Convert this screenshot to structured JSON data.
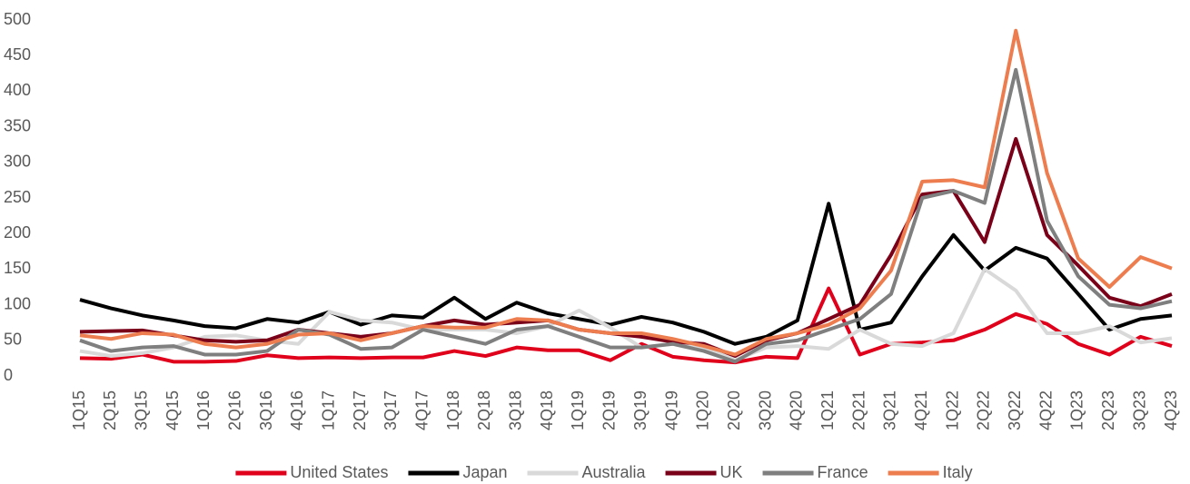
{
  "chart_data": {
    "type": "line",
    "categories": [
      "1Q15",
      "2Q15",
      "3Q15",
      "4Q15",
      "1Q16",
      "2Q16",
      "3Q16",
      "4Q16",
      "1Q17",
      "2Q17",
      "3Q17",
      "4Q17",
      "1Q18",
      "2Q18",
      "3Q18",
      "4Q18",
      "1Q19",
      "2Q19",
      "3Q19",
      "4Q19",
      "1Q20",
      "2Q20",
      "3Q20",
      "4Q20",
      "1Q21",
      "2Q21",
      "3Q21",
      "4Q21",
      "1Q22",
      "2Q22",
      "3Q22",
      "4Q22",
      "1Q23",
      "2Q23",
      "3Q23",
      "4Q23"
    ],
    "series": [
      {
        "name": "United States",
        "color": "#e0001b",
        "values": [
          25,
          24,
          30,
          20,
          20,
          21,
          29,
          25,
          26,
          25,
          26,
          26,
          35,
          28,
          40,
          36,
          36,
          22,
          45,
          27,
          22,
          19,
          27,
          25,
          123,
          30,
          45,
          47,
          50,
          65,
          87,
          73,
          45,
          30,
          55,
          42
        ]
      },
      {
        "name": "Japan",
        "color": "#000000",
        "values": [
          107,
          95,
          85,
          78,
          70,
          67,
          80,
          75,
          90,
          72,
          85,
          82,
          110,
          80,
          103,
          88,
          80,
          72,
          83,
          75,
          62,
          45,
          55,
          78,
          242,
          65,
          75,
          140,
          198,
          148,
          180,
          165,
          115,
          65,
          80,
          85
        ]
      },
      {
        "name": "Australia",
        "color": "#d9d9d9",
        "values": [
          35,
          28,
          32,
          40,
          55,
          57,
          50,
          45,
          90,
          78,
          75,
          65,
          65,
          65,
          60,
          70,
          92,
          68,
          40,
          45,
          40,
          22,
          40,
          42,
          38,
          65,
          45,
          42,
          60,
          150,
          120,
          60,
          60,
          70,
          47,
          53
        ]
      },
      {
        "name": "UK",
        "color": "#7a0019",
        "values": [
          62,
          63,
          64,
          57,
          50,
          48,
          50,
          65,
          60,
          55,
          60,
          70,
          78,
          72,
          75,
          78,
          65,
          60,
          55,
          48,
          45,
          28,
          50,
          60,
          80,
          100,
          170,
          255,
          260,
          188,
          333,
          198,
          155,
          110,
          98,
          115
        ]
      },
      {
        "name": "France",
        "color": "#7f7f7f",
        "values": [
          50,
          35,
          40,
          42,
          30,
          30,
          35,
          65,
          58,
          38,
          40,
          65,
          55,
          45,
          65,
          70,
          55,
          40,
          40,
          45,
          35,
          20,
          45,
          50,
          65,
          80,
          115,
          250,
          260,
          243,
          430,
          218,
          140,
          100,
          95,
          105
        ]
      },
      {
        "name": "Italy",
        "color": "#ed7d4f",
        "values": [
          57,
          52,
          60,
          58,
          45,
          40,
          45,
          58,
          60,
          50,
          60,
          70,
          68,
          68,
          80,
          78,
          65,
          60,
          60,
          52,
          42,
          30,
          52,
          60,
          72,
          95,
          148,
          273,
          275,
          265,
          485,
          285,
          165,
          125,
          167,
          151
        ]
      }
    ],
    "ylim": [
      0,
      500
    ],
    "yticks": [
      0,
      50,
      100,
      150,
      200,
      250,
      300,
      350,
      400,
      450,
      500
    ],
    "grid": false,
    "legend": "bottom"
  }
}
